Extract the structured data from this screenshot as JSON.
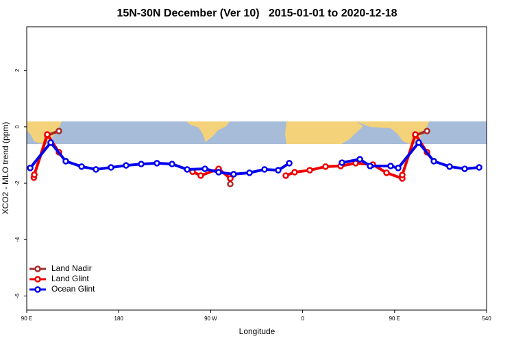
{
  "chart_data": {
    "type": "line",
    "title": "15N-30N December (Ver 10)   2015-01-01 to 2020-12-18",
    "xlabel": "Longitude",
    "ylabel": "XCO2 - MLO trend (ppm)",
    "xlim": [
      90,
      540
    ],
    "xticks": [
      {
        "value": 90,
        "label": "90 E"
      },
      180,
      {
        "value": 270,
        "label": "90 W"
      },
      {
        "value": 360,
        "label": "0"
      },
      {
        "value": 450,
        "label": "90 E"
      },
      540
    ],
    "ylim": [
      -6.5,
      3.55
    ],
    "yticks": [
      -6,
      -4,
      -2,
      0,
      2
    ],
    "legend": "bottom-left",
    "series": [
      {
        "name": "Land Nadir",
        "color": "#a52a2a",
        "x": [
          97.4,
          110.1,
          121.5,
          null,
          289.2,
          null,
          470.3,
          481.7
        ],
        "values": [
          -1.7,
          -0.3,
          -0.15,
          null,
          -2.03,
          null,
          -0.3,
          -0.15
        ]
      },
      {
        "name": "Land Glint",
        "color": "#ee0000",
        "x": [
          97.0,
          97.4,
          110.1,
          121.5,
          null,
          252.3,
          260.3,
          277.8,
          289.2,
          null,
          343.5,
          352.2,
          367,
          382.4,
          397.2,
          411.9,
          428.7,
          442.1,
          457.5,
          457.5,
          470.3,
          481.7
        ],
        "values": [
          -1.8,
          -1.7,
          -0.27,
          -0.9,
          null,
          -1.59,
          -1.73,
          -1.49,
          -1.83,
          null,
          -1.73,
          -1.61,
          -1.54,
          -1.41,
          -1.39,
          -1.29,
          -1.34,
          -1.63,
          -1.83,
          -1.71,
          -0.27,
          -0.9
        ]
      },
      {
        "name": "Ocean Glint",
        "color": "#0000ee",
        "x": [
          93.4,
          113.5,
          128.2,
          143.7,
          157.7,
          172.5,
          187.2,
          202,
          217.4,
          232.2,
          247,
          264.4,
          277.8,
          292.5,
          308,
          322.7,
          336.1,
          346.9,
          null,
          398.5,
          416,
          426,
          446.1,
          453.5,
          473.6,
          488.4,
          503.8,
          518.6,
          532.7
        ],
        "values": [
          -1.46,
          -0.56,
          -1.22,
          -1.41,
          -1.51,
          -1.44,
          -1.37,
          -1.32,
          -1.29,
          -1.32,
          -1.51,
          -1.49,
          -1.61,
          -1.68,
          -1.63,
          -1.51,
          -1.54,
          -1.29,
          null,
          -1.27,
          -1.15,
          -1.39,
          -1.39,
          -1.46,
          -0.56,
          -1.22,
          -1.41,
          -1.49,
          -1.44
        ]
      }
    ]
  }
}
